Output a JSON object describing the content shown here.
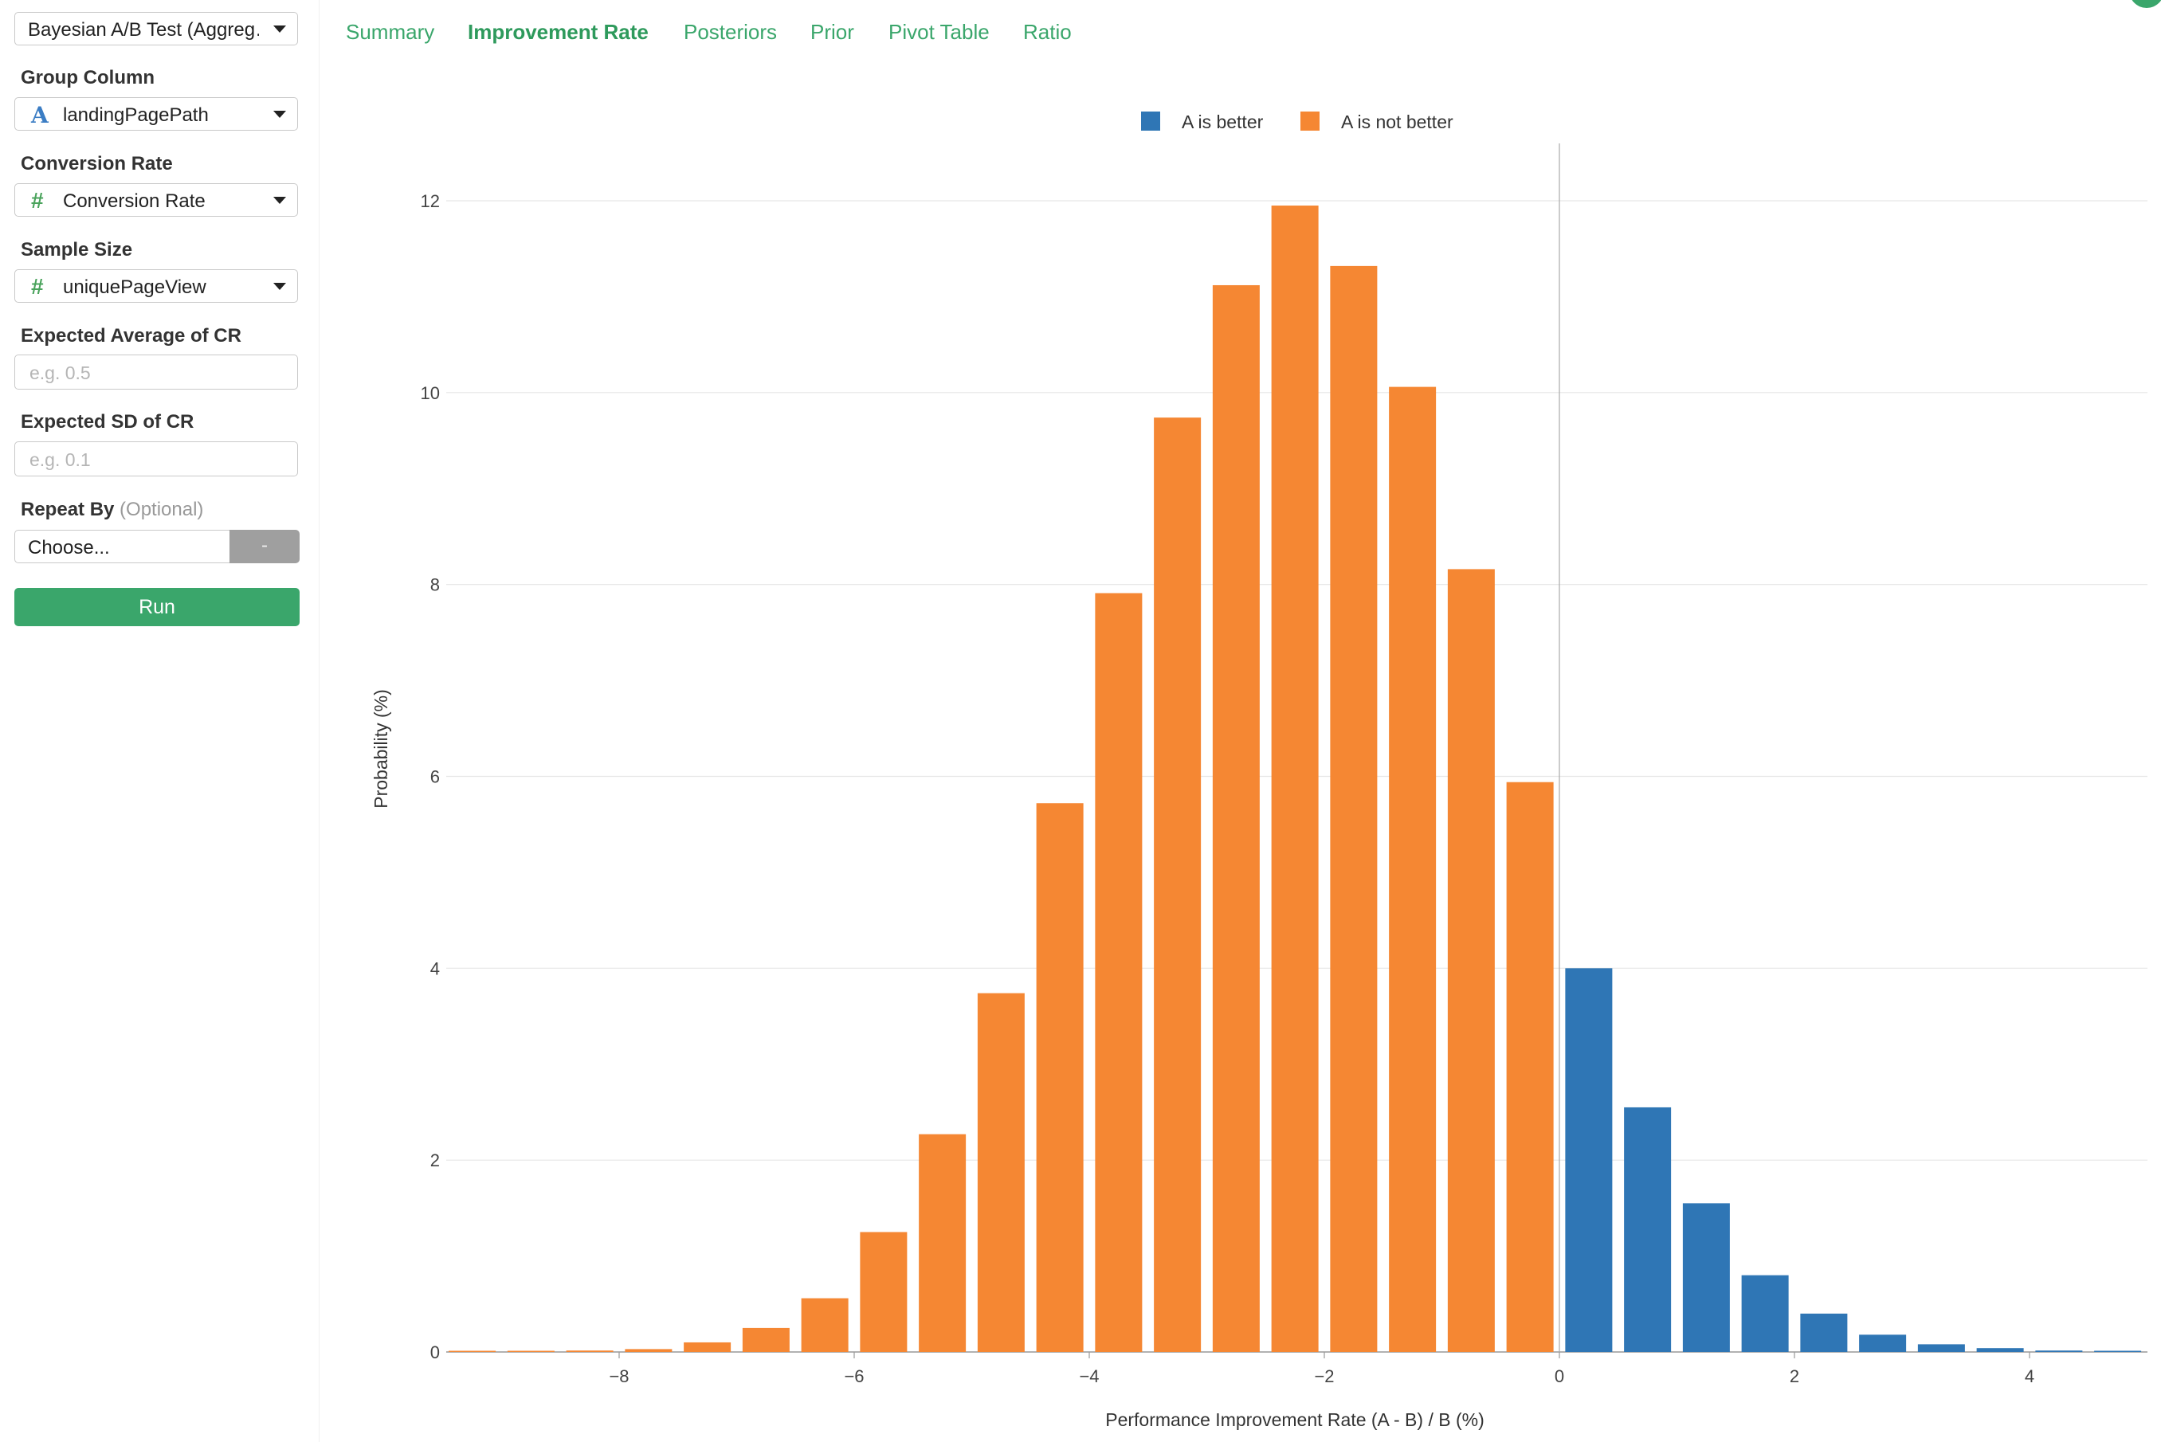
{
  "sidebar": {
    "type_select": "Bayesian A/B Test (Aggreg…",
    "group_column": {
      "label": "Group Column",
      "icon": "string-icon",
      "icon_glyph": "A",
      "value": "landingPagePath"
    },
    "conversion_rate": {
      "label": "Conversion Rate",
      "icon": "number-icon",
      "icon_glyph": "#",
      "value": "Conversion Rate"
    },
    "sample_size": {
      "label": "Sample Size",
      "icon": "number-icon",
      "icon_glyph": "#",
      "value": "uniquePageView"
    },
    "expected_avg": {
      "label": "Expected Average of CR",
      "placeholder": "e.g. 0.5"
    },
    "expected_sd": {
      "label": "Expected SD of CR",
      "placeholder": "e.g. 0.1"
    },
    "repeat_by": {
      "label": "Repeat By",
      "optional": "(Optional)",
      "value": "Choose...",
      "clear": "-"
    },
    "run_label": "Run"
  },
  "tabs": [
    {
      "label": "Summary",
      "active": false
    },
    {
      "label": "Improvement Rate",
      "active": true
    },
    {
      "label": "Posteriors",
      "active": false
    },
    {
      "label": "Prior",
      "active": false
    },
    {
      "label": "Pivot Table",
      "active": false
    },
    {
      "label": "Ratio",
      "active": false
    }
  ],
  "colors": {
    "accent": "#3aa66b",
    "better": "#2f76b5",
    "not_better": "#f58733"
  },
  "chart_data": {
    "type": "bar",
    "title": "",
    "xlabel": "Performance Improvement Rate (A - B) / B (%)",
    "ylabel": "Probability (%)",
    "xlim": [
      -9.2,
      5.0
    ],
    "ylim": [
      0,
      12.4
    ],
    "x_ticks": [
      -8,
      -6,
      -4,
      -2,
      0,
      2,
      4
    ],
    "x_tick_labels": [
      "−8",
      "−6",
      "−4",
      "−2",
      "0",
      "2",
      "4"
    ],
    "y_ticks": [
      0,
      2,
      4,
      6,
      8,
      10,
      12
    ],
    "legend_position": "top-center",
    "grid": true,
    "vertical_line_at": 0,
    "series": [
      {
        "name": "A is better",
        "x": [
          0.25,
          0.75,
          1.25,
          1.75,
          2.25,
          2.75,
          3.25,
          3.75,
          4.25,
          4.75
        ],
        "values": [
          4.0,
          2.55,
          1.55,
          0.8,
          0.4,
          0.18,
          0.08,
          0.04,
          0.015,
          0.01
        ]
      },
      {
        "name": "A is not better",
        "x": [
          -9.25,
          -8.75,
          -8.25,
          -7.75,
          -7.25,
          -6.75,
          -6.25,
          -5.75,
          -5.25,
          -4.75,
          -4.25,
          -3.75,
          -3.25,
          -2.75,
          -2.25,
          -1.75,
          -1.25,
          -0.75,
          -0.25
        ],
        "values": [
          0.01,
          0.01,
          0.015,
          0.03,
          0.1,
          0.25,
          0.56,
          1.25,
          2.27,
          3.74,
          5.72,
          7.91,
          9.74,
          11.12,
          11.95,
          11.32,
          10.06,
          8.16,
          5.94
        ]
      }
    ]
  }
}
